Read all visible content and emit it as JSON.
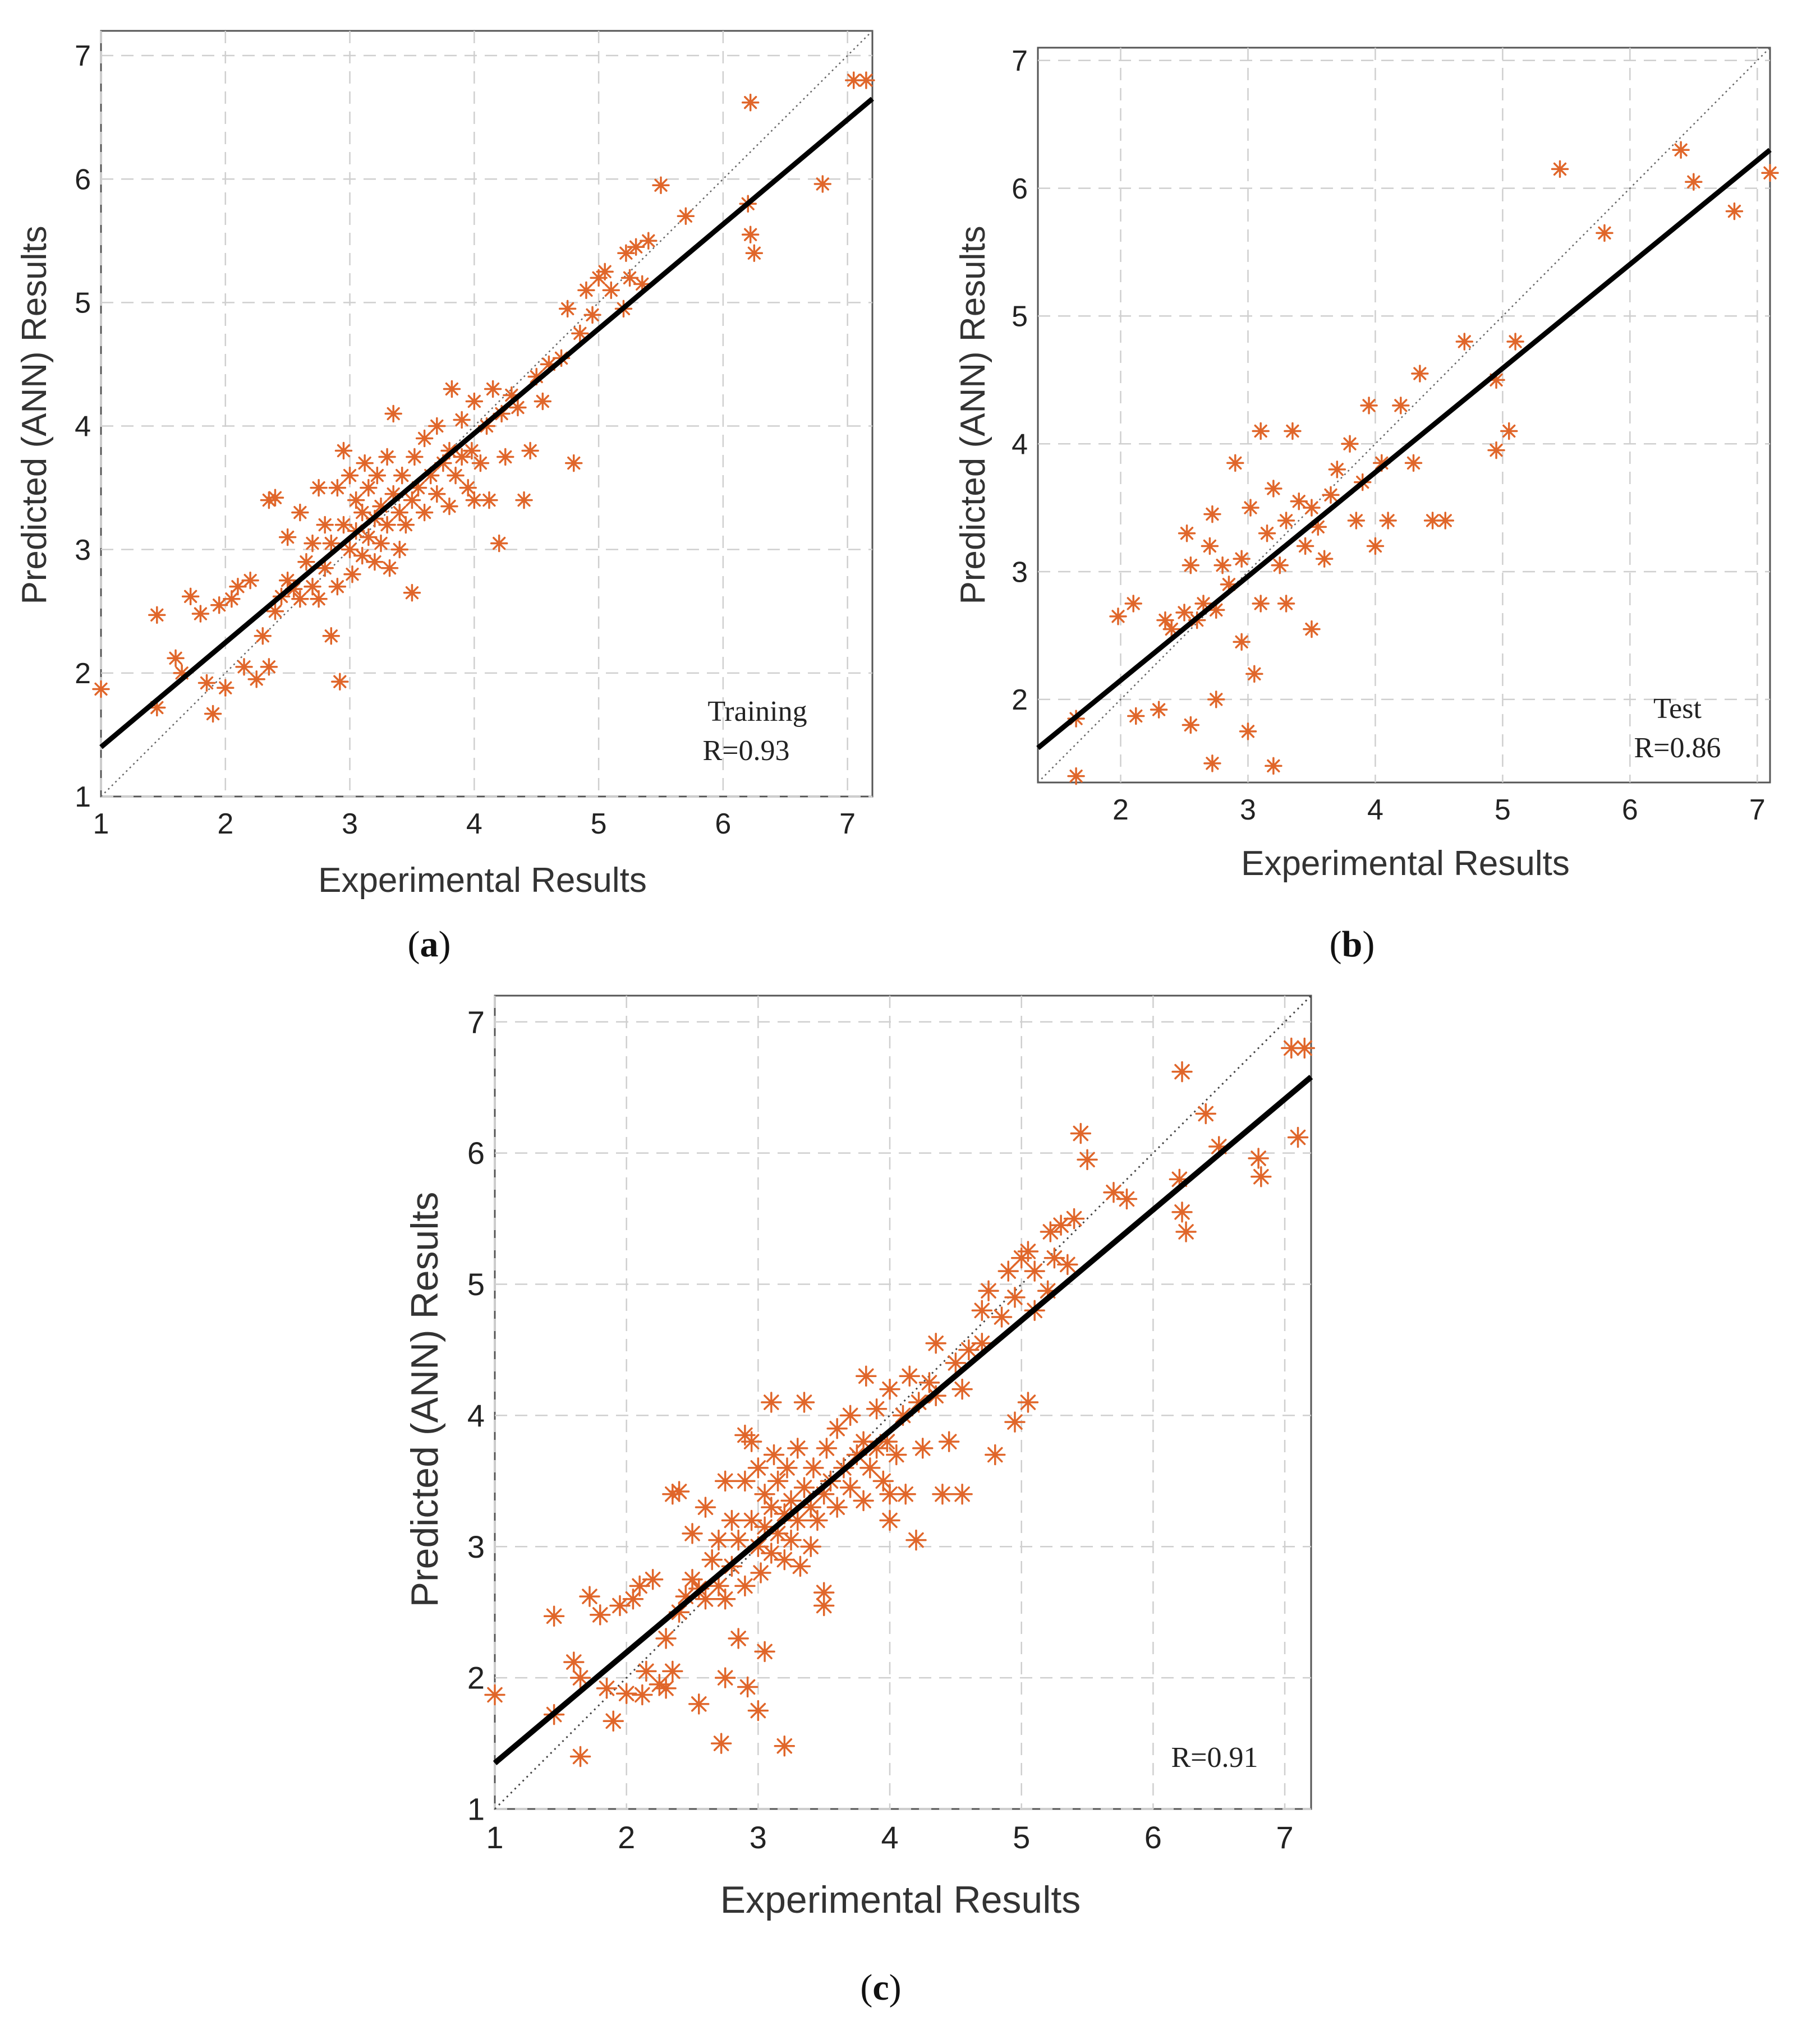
{
  "chart_data": [
    {
      "id": "a",
      "type": "scatter",
      "caption": "a",
      "xlabel": "Experimental Results",
      "ylabel": "Predicted (ANN) Results",
      "xlim": [
        1,
        7.2
      ],
      "ylim": [
        1,
        7.2
      ],
      "xticks": [
        1,
        2,
        3,
        4,
        5,
        6,
        7
      ],
      "yticks": [
        1,
        2,
        3,
        4,
        5,
        6,
        7
      ],
      "grid": true,
      "annotations": [
        "Training",
        "R=0.93"
      ],
      "marker_color": "#e0662a",
      "fit_line": {
        "x": [
          1,
          7.2
        ],
        "y": [
          1.4,
          6.65
        ]
      },
      "identity_line": {
        "x": [
          1,
          7.2
        ],
        "y": [
          1,
          7.2
        ]
      },
      "points": [
        [
          1.0,
          1.87
        ],
        [
          1.45,
          1.72
        ],
        [
          1.45,
          2.47
        ],
        [
          1.6,
          2.12
        ],
        [
          1.65,
          2.0
        ],
        [
          1.72,
          2.62
        ],
        [
          1.8,
          2.48
        ],
        [
          1.85,
          1.92
        ],
        [
          1.9,
          1.67
        ],
        [
          1.95,
          2.55
        ],
        [
          2.0,
          1.88
        ],
        [
          2.05,
          2.6
        ],
        [
          2.1,
          2.7
        ],
        [
          2.15,
          2.05
        ],
        [
          2.2,
          2.75
        ],
        [
          2.25,
          1.95
        ],
        [
          2.3,
          2.3
        ],
        [
          2.35,
          2.05
        ],
        [
          2.35,
          3.4
        ],
        [
          2.4,
          3.42
        ],
        [
          2.4,
          2.5
        ],
        [
          2.45,
          2.62
        ],
        [
          2.5,
          3.1
        ],
        [
          2.5,
          2.75
        ],
        [
          2.55,
          2.68
        ],
        [
          2.6,
          2.6
        ],
        [
          2.6,
          3.3
        ],
        [
          2.65,
          2.9
        ],
        [
          2.7,
          2.7
        ],
        [
          2.7,
          3.05
        ],
        [
          2.75,
          3.5
        ],
        [
          2.75,
          2.6
        ],
        [
          2.8,
          3.2
        ],
        [
          2.8,
          2.85
        ],
        [
          2.85,
          3.05
        ],
        [
          2.85,
          2.3
        ],
        [
          2.9,
          3.5
        ],
        [
          2.9,
          2.7
        ],
        [
          2.92,
          1.93
        ],
        [
          2.95,
          3.8
        ],
        [
          2.95,
          3.2
        ],
        [
          3.0,
          3.0
        ],
        [
          3.0,
          3.6
        ],
        [
          3.02,
          2.8
        ],
        [
          3.05,
          3.4
        ],
        [
          3.05,
          3.15
        ],
        [
          3.1,
          3.3
        ],
        [
          3.1,
          2.95
        ],
        [
          3.12,
          3.7
        ],
        [
          3.15,
          3.5
        ],
        [
          3.15,
          3.1
        ],
        [
          3.2,
          3.25
        ],
        [
          3.2,
          2.9
        ],
        [
          3.22,
          3.6
        ],
        [
          3.25,
          3.35
        ],
        [
          3.25,
          3.05
        ],
        [
          3.3,
          3.75
        ],
        [
          3.3,
          3.2
        ],
        [
          3.32,
          2.85
        ],
        [
          3.35,
          3.45
        ],
        [
          3.35,
          4.1
        ],
        [
          3.4,
          3.3
        ],
        [
          3.4,
          3.0
        ],
        [
          3.42,
          3.6
        ],
        [
          3.45,
          3.2
        ],
        [
          3.5,
          3.4
        ],
        [
          3.5,
          2.65
        ],
        [
          3.52,
          3.75
        ],
        [
          3.55,
          3.5
        ],
        [
          3.6,
          3.3
        ],
        [
          3.6,
          3.9
        ],
        [
          3.65,
          3.6
        ],
        [
          3.7,
          3.45
        ],
        [
          3.7,
          4.0
        ],
        [
          3.75,
          3.7
        ],
        [
          3.8,
          3.8
        ],
        [
          3.8,
          3.35
        ],
        [
          3.82,
          4.3
        ],
        [
          3.85,
          3.6
        ],
        [
          3.9,
          3.75
        ],
        [
          3.9,
          4.05
        ],
        [
          3.95,
          3.5
        ],
        [
          3.98,
          3.8
        ],
        [
          4.0,
          3.4
        ],
        [
          4.0,
          4.2
        ],
        [
          4.05,
          3.7
        ],
        [
          4.1,
          4.0
        ],
        [
          4.12,
          3.4
        ],
        [
          4.15,
          4.3
        ],
        [
          4.2,
          3.05
        ],
        [
          4.22,
          4.1
        ],
        [
          4.25,
          3.75
        ],
        [
          4.3,
          4.25
        ],
        [
          4.35,
          4.15
        ],
        [
          4.4,
          3.4
        ],
        [
          4.45,
          3.8
        ],
        [
          4.5,
          4.4
        ],
        [
          4.55,
          4.2
        ],
        [
          4.6,
          4.5
        ],
        [
          4.7,
          4.55
        ],
        [
          4.75,
          4.95
        ],
        [
          4.8,
          3.7
        ],
        [
          4.85,
          4.75
        ],
        [
          4.9,
          5.1
        ],
        [
          4.95,
          4.9
        ],
        [
          5.0,
          5.2
        ],
        [
          5.05,
          5.25
        ],
        [
          5.1,
          5.1
        ],
        [
          5.2,
          4.95
        ],
        [
          5.22,
          5.4
        ],
        [
          5.25,
          5.2
        ],
        [
          5.3,
          5.45
        ],
        [
          5.35,
          5.15
        ],
        [
          5.4,
          5.5
        ],
        [
          5.5,
          5.95
        ],
        [
          5.7,
          5.7
        ],
        [
          6.2,
          5.8
        ],
        [
          6.22,
          5.55
        ],
        [
          6.25,
          5.4
        ],
        [
          6.22,
          6.62
        ],
        [
          6.8,
          5.96
        ],
        [
          7.05,
          6.8
        ],
        [
          7.15,
          6.8
        ]
      ]
    },
    {
      "id": "b",
      "type": "scatter",
      "caption": "b",
      "xlabel": "Experimental Results",
      "ylabel": "Predicted (ANN) Results",
      "xlim": [
        1.35,
        7.1
      ],
      "ylim": [
        1.35,
        7.1
      ],
      "xticks": [
        2,
        3,
        4,
        5,
        6,
        7
      ],
      "yticks": [
        2,
        3,
        4,
        5,
        6,
        7
      ],
      "grid": true,
      "annotations": [
        "Test",
        "R=0.86"
      ],
      "marker_color": "#e0662a",
      "fit_line": {
        "x": [
          1.35,
          7.1
        ],
        "y": [
          1.62,
          6.3
        ]
      },
      "identity_line": {
        "x": [
          1.35,
          7.1
        ],
        "y": [
          1.35,
          7.1
        ]
      },
      "points": [
        [
          1.65,
          1.4
        ],
        [
          1.65,
          1.85
        ],
        [
          1.98,
          2.65
        ],
        [
          2.1,
          2.75
        ],
        [
          2.12,
          1.87
        ],
        [
          2.3,
          1.92
        ],
        [
          2.35,
          2.62
        ],
        [
          2.4,
          2.55
        ],
        [
          2.5,
          2.68
        ],
        [
          2.52,
          3.3
        ],
        [
          2.55,
          1.8
        ],
        [
          2.55,
          3.05
        ],
        [
          2.6,
          2.62
        ],
        [
          2.65,
          2.75
        ],
        [
          2.7,
          3.2
        ],
        [
          2.72,
          3.45
        ],
        [
          2.72,
          1.5
        ],
        [
          2.75,
          2.7
        ],
        [
          2.75,
          2.0
        ],
        [
          2.8,
          3.05
        ],
        [
          2.85,
          2.9
        ],
        [
          2.9,
          3.85
        ],
        [
          2.95,
          3.1
        ],
        [
          2.95,
          2.45
        ],
        [
          3.0,
          1.75
        ],
        [
          3.02,
          3.5
        ],
        [
          3.05,
          2.2
        ],
        [
          3.1,
          4.1
        ],
        [
          3.1,
          2.75
        ],
        [
          3.15,
          3.3
        ],
        [
          3.2,
          1.48
        ],
        [
          3.2,
          3.65
        ],
        [
          3.25,
          3.05
        ],
        [
          3.3,
          2.75
        ],
        [
          3.3,
          3.4
        ],
        [
          3.35,
          4.1
        ],
        [
          3.4,
          3.55
        ],
        [
          3.45,
          3.2
        ],
        [
          3.5,
          3.5
        ],
        [
          3.5,
          2.55
        ],
        [
          3.55,
          3.35
        ],
        [
          3.6,
          3.1
        ],
        [
          3.65,
          3.6
        ],
        [
          3.7,
          3.8
        ],
        [
          3.8,
          4.0
        ],
        [
          3.85,
          3.4
        ],
        [
          3.9,
          3.7
        ],
        [
          3.95,
          4.3
        ],
        [
          4.0,
          3.2
        ],
        [
          4.05,
          3.85
        ],
        [
          4.1,
          3.4
        ],
        [
          4.2,
          4.3
        ],
        [
          4.3,
          3.85
        ],
        [
          4.35,
          4.55
        ],
        [
          4.45,
          3.4
        ],
        [
          4.55,
          3.4
        ],
        [
          4.7,
          4.8
        ],
        [
          4.95,
          3.95
        ],
        [
          4.95,
          4.5
        ],
        [
          5.05,
          4.1
        ],
        [
          5.1,
          4.8
        ],
        [
          5.45,
          6.15
        ],
        [
          5.8,
          5.65
        ],
        [
          6.4,
          6.3
        ],
        [
          6.5,
          6.05
        ],
        [
          6.82,
          5.82
        ],
        [
          7.1,
          6.12
        ]
      ]
    },
    {
      "id": "c",
      "type": "scatter",
      "caption": "c",
      "xlabel": "Experimental Results",
      "ylabel": "Predicted (ANN) Results",
      "xlim": [
        1,
        7.2
      ],
      "ylim": [
        1,
        7.2
      ],
      "xticks": [
        1,
        2,
        3,
        4,
        5,
        6,
        7
      ],
      "yticks": [
        1,
        2,
        3,
        4,
        5,
        6,
        7
      ],
      "grid": true,
      "annotations": [
        "R=0.91"
      ],
      "marker_color": "#e0662a",
      "fit_line": {
        "x": [
          1,
          7.2
        ],
        "y": [
          1.35,
          6.58
        ]
      },
      "identity_line": {
        "x": [
          1,
          7.2
        ],
        "y": [
          1,
          7.2
        ]
      },
      "points": [
        [
          1.0,
          1.87
        ],
        [
          1.45,
          1.72
        ],
        [
          1.45,
          2.47
        ],
        [
          1.6,
          2.12
        ],
        [
          1.65,
          2.0
        ],
        [
          1.65,
          1.4
        ],
        [
          1.72,
          2.62
        ],
        [
          1.8,
          2.48
        ],
        [
          1.85,
          1.92
        ],
        [
          1.9,
          1.67
        ],
        [
          1.95,
          2.55
        ],
        [
          2.0,
          1.88
        ],
        [
          2.05,
          2.6
        ],
        [
          2.1,
          2.7
        ],
        [
          2.12,
          1.87
        ],
        [
          2.15,
          2.05
        ],
        [
          2.2,
          2.75
        ],
        [
          2.25,
          1.95
        ],
        [
          2.3,
          2.3
        ],
        [
          2.3,
          1.92
        ],
        [
          2.35,
          2.05
        ],
        [
          2.35,
          3.4
        ],
        [
          2.4,
          3.42
        ],
        [
          2.4,
          2.5
        ],
        [
          2.45,
          2.62
        ],
        [
          2.5,
          3.1
        ],
        [
          2.5,
          2.75
        ],
        [
          2.55,
          2.68
        ],
        [
          2.55,
          1.8
        ],
        [
          2.6,
          2.6
        ],
        [
          2.6,
          3.3
        ],
        [
          2.65,
          2.9
        ],
        [
          2.7,
          2.7
        ],
        [
          2.7,
          3.05
        ],
        [
          2.72,
          1.5
        ],
        [
          2.75,
          3.5
        ],
        [
          2.75,
          2.6
        ],
        [
          2.75,
          2.0
        ],
        [
          2.8,
          3.2
        ],
        [
          2.8,
          2.85
        ],
        [
          2.85,
          3.05
        ],
        [
          2.85,
          2.3
        ],
        [
          2.9,
          3.5
        ],
        [
          2.9,
          3.85
        ],
        [
          2.9,
          2.7
        ],
        [
          2.92,
          1.93
        ],
        [
          2.95,
          3.8
        ],
        [
          2.95,
          3.2
        ],
        [
          3.0,
          3.0
        ],
        [
          3.0,
          1.75
        ],
        [
          3.0,
          3.6
        ],
        [
          3.02,
          2.8
        ],
        [
          3.05,
          3.4
        ],
        [
          3.05,
          3.15
        ],
        [
          3.05,
          2.2
        ],
        [
          3.1,
          3.3
        ],
        [
          3.1,
          2.95
        ],
        [
          3.1,
          4.1
        ],
        [
          3.12,
          3.7
        ],
        [
          3.15,
          3.5
        ],
        [
          3.15,
          3.1
        ],
        [
          3.2,
          3.25
        ],
        [
          3.2,
          1.48
        ],
        [
          3.2,
          2.9
        ],
        [
          3.22,
          3.6
        ],
        [
          3.25,
          3.35
        ],
        [
          3.25,
          3.05
        ],
        [
          3.3,
          3.75
        ],
        [
          3.3,
          3.2
        ],
        [
          3.32,
          2.85
        ],
        [
          3.35,
          3.45
        ],
        [
          3.35,
          4.1
        ],
        [
          3.4,
          3.3
        ],
        [
          3.4,
          3.0
        ],
        [
          3.42,
          3.6
        ],
        [
          3.45,
          3.2
        ],
        [
          3.5,
          3.4
        ],
        [
          3.5,
          2.55
        ],
        [
          3.5,
          2.65
        ],
        [
          3.52,
          3.75
        ],
        [
          3.55,
          3.5
        ],
        [
          3.6,
          3.3
        ],
        [
          3.6,
          3.9
        ],
        [
          3.65,
          3.6
        ],
        [
          3.7,
          3.45
        ],
        [
          3.7,
          4.0
        ],
        [
          3.75,
          3.7
        ],
        [
          3.8,
          3.8
        ],
        [
          3.8,
          3.35
        ],
        [
          3.82,
          4.3
        ],
        [
          3.85,
          3.6
        ],
        [
          3.9,
          3.75
        ],
        [
          3.9,
          4.05
        ],
        [
          3.95,
          3.5
        ],
        [
          3.98,
          3.8
        ],
        [
          4.0,
          3.4
        ],
        [
          4.0,
          3.2
        ],
        [
          4.0,
          4.2
        ],
        [
          4.05,
          3.7
        ],
        [
          4.1,
          4.0
        ],
        [
          4.12,
          3.4
        ],
        [
          4.15,
          4.3
        ],
        [
          4.2,
          3.05
        ],
        [
          4.22,
          4.1
        ],
        [
          4.25,
          3.75
        ],
        [
          4.3,
          4.25
        ],
        [
          4.35,
          4.15
        ],
        [
          4.35,
          4.55
        ],
        [
          4.4,
          3.4
        ],
        [
          4.45,
          3.8
        ],
        [
          4.5,
          4.4
        ],
        [
          4.55,
          4.2
        ],
        [
          4.55,
          3.4
        ],
        [
          4.6,
          4.5
        ],
        [
          4.7,
          4.55
        ],
        [
          4.7,
          4.8
        ],
        [
          4.75,
          4.95
        ],
        [
          4.8,
          3.7
        ],
        [
          4.85,
          4.75
        ],
        [
          4.9,
          5.1
        ],
        [
          4.95,
          4.9
        ],
        [
          4.95,
          3.95
        ],
        [
          5.0,
          5.2
        ],
        [
          5.05,
          5.25
        ],
        [
          5.05,
          4.1
        ],
        [
          5.1,
          5.1
        ],
        [
          5.1,
          4.8
        ],
        [
          5.2,
          4.95
        ],
        [
          5.22,
          5.4
        ],
        [
          5.25,
          5.2
        ],
        [
          5.3,
          5.45
        ],
        [
          5.35,
          5.15
        ],
        [
          5.4,
          5.5
        ],
        [
          5.45,
          6.15
        ],
        [
          5.5,
          5.95
        ],
        [
          5.7,
          5.7
        ],
        [
          5.8,
          5.65
        ],
        [
          6.2,
          5.8
        ],
        [
          6.22,
          5.55
        ],
        [
          6.25,
          5.4
        ],
        [
          6.22,
          6.62
        ],
        [
          6.4,
          6.3
        ],
        [
          6.5,
          6.05
        ],
        [
          6.8,
          5.96
        ],
        [
          6.82,
          5.82
        ],
        [
          7.1,
          6.12
        ],
        [
          7.05,
          6.8
        ],
        [
          7.15,
          6.8
        ]
      ]
    }
  ]
}
